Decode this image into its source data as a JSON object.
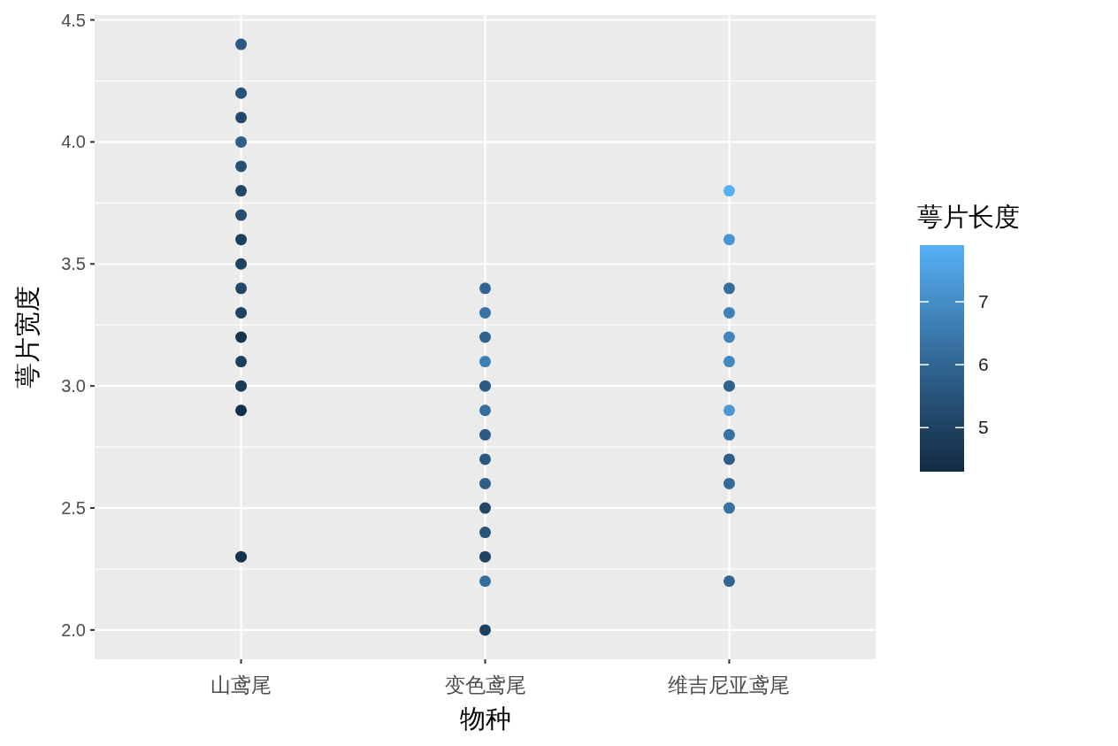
{
  "chart_data": {
    "type": "scatter",
    "xlabel": "物种",
    "ylabel": "萼片宽度",
    "clabel": "萼片长度",
    "categories": [
      "山鸢尾",
      "变色鸢尾",
      "维吉尼亚鸢尾"
    ],
    "ylim": [
      1.88,
      4.52
    ],
    "yticks": [
      {
        "value": 2,
        "label": "2.0"
      },
      {
        "value": 2.5,
        "label": "2.5"
      },
      {
        "value": 3,
        "label": "3.0"
      },
      {
        "value": 3.5,
        "label": "3.5"
      },
      {
        "value": 4,
        "label": "4.0"
      },
      {
        "value": 4.5,
        "label": "4.5"
      }
    ],
    "clim": [
      4.3,
      7.9
    ],
    "cticks": [
      5,
      6,
      7
    ],
    "grid": true,
    "marker": "circle",
    "series": [
      {
        "x": [
          "山鸢尾",
          "山鸢尾",
          "山鸢尾",
          "山鸢尾",
          "山鸢尾",
          "山鸢尾",
          "山鸢尾",
          "山鸢尾",
          "山鸢尾",
          "山鸢尾",
          "山鸢尾",
          "山鸢尾",
          "山鸢尾",
          "山鸢尾",
          "山鸢尾",
          "山鸢尾",
          "变色鸢尾",
          "变色鸢尾",
          "变色鸢尾",
          "变色鸢尾",
          "变色鸢尾",
          "变色鸢尾",
          "变色鸢尾",
          "变色鸢尾",
          "变色鸢尾",
          "变色鸢尾",
          "变色鸢尾",
          "变色鸢尾",
          "变色鸢尾",
          "变色鸢尾",
          "维吉尼亚鸢尾",
          "维吉尼亚鸢尾",
          "维吉尼亚鸢尾",
          "维吉尼亚鸢尾",
          "维吉尼亚鸢尾",
          "维吉尼亚鸢尾",
          "维吉尼亚鸢尾",
          "维吉尼亚鸢尾",
          "维吉尼亚鸢尾",
          "维吉尼亚鸢尾",
          "维吉尼亚鸢尾",
          "维吉尼亚鸢尾",
          "维吉尼亚鸢尾"
        ],
        "values": [
          4.4,
          4.2,
          4.1,
          4.0,
          3.9,
          3.8,
          3.7,
          3.6,
          3.5,
          3.4,
          3.3,
          3.2,
          3.1,
          3.0,
          2.9,
          2.3,
          3.4,
          3.3,
          3.2,
          3.1,
          3.0,
          2.9,
          2.8,
          2.7,
          2.6,
          2.5,
          2.4,
          2.3,
          2.2,
          2.0,
          3.8,
          3.6,
          3.4,
          3.3,
          3.2,
          3.1,
          3.0,
          2.9,
          2.8,
          2.7,
          2.6,
          2.5,
          2.2
        ],
        "cvalues": [
          5.7,
          5.5,
          5.2,
          5.8,
          5.4,
          5.1,
          5.3,
          4.9,
          5.0,
          5.1,
          5.0,
          4.6,
          4.9,
          4.8,
          4.4,
          4.5,
          6.0,
          6.3,
          5.9,
          6.7,
          5.7,
          6.2,
          5.7,
          5.6,
          5.8,
          5.1,
          5.5,
          5.0,
          6.2,
          5.0,
          7.9,
          7.2,
          6.2,
          6.7,
          6.8,
          6.9,
          5.9,
          7.3,
          6.3,
          5.8,
          6.1,
          6.3,
          6.0
        ]
      }
    ]
  }
}
